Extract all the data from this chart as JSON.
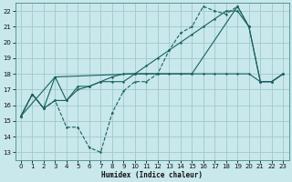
{
  "background_color": "#c8e8ec",
  "grid_color": "#a0c8cc",
  "line_color": "#1a6060",
  "xlabel": "Humidex (Indice chaleur)",
  "xlim": [
    -0.5,
    23.5
  ],
  "ylim": [
    12.5,
    22.5
  ],
  "xticks": [
    0,
    1,
    2,
    3,
    4,
    5,
    6,
    7,
    8,
    9,
    10,
    11,
    12,
    13,
    14,
    15,
    16,
    17,
    18,
    19,
    20,
    21,
    22,
    23
  ],
  "yticks": [
    13,
    14,
    15,
    16,
    17,
    18,
    19,
    20,
    21,
    22
  ],
  "lines": [
    {
      "x": [
        0,
        1,
        2,
        3,
        4,
        5,
        6,
        7,
        8,
        9,
        10,
        11,
        12,
        13,
        14,
        15,
        16,
        17,
        18,
        19,
        20,
        21,
        22,
        23
      ],
      "y": [
        15.3,
        16.7,
        15.8,
        17.8,
        16.3,
        17.0,
        17.2,
        17.5,
        17.5,
        17.5,
        18.0,
        18.0,
        18.0,
        18.0,
        18.0,
        18.0,
        18.0,
        18.0,
        18.0,
        18.0,
        18.0,
        17.5,
        17.5,
        18.0
      ],
      "dashed": false
    },
    {
      "x": [
        0,
        1,
        2,
        3,
        4,
        5,
        6,
        7,
        8,
        9,
        10,
        11,
        12,
        13,
        14,
        15,
        16,
        17,
        18,
        19,
        20
      ],
      "y": [
        15.3,
        16.7,
        15.8,
        16.3,
        14.6,
        14.6,
        13.3,
        13.0,
        15.5,
        16.9,
        17.5,
        17.5,
        18.0,
        19.5,
        20.6,
        21.0,
        22.3,
        22.0,
        21.8,
        22.3,
        21.0
      ],
      "dashed": true
    },
    {
      "x": [
        0,
        1,
        2,
        3,
        4,
        5,
        6,
        7,
        8,
        9,
        10,
        11,
        12,
        13,
        14,
        15,
        16,
        17,
        18,
        19,
        20,
        21,
        22,
        23
      ],
      "y": [
        15.3,
        16.7,
        15.8,
        16.3,
        16.3,
        17.2,
        17.2,
        17.5,
        17.8,
        18.0,
        18.0,
        18.5,
        19.0,
        19.5,
        20.0,
        20.5,
        21.0,
        21.5,
        22.0,
        22.0,
        21.0,
        17.5,
        17.5,
        18.0
      ],
      "dashed": false
    },
    {
      "x": [
        0,
        3,
        10,
        15,
        19,
        20,
        21,
        22,
        23
      ],
      "y": [
        15.3,
        17.8,
        18.0,
        18.0,
        22.3,
        21.0,
        17.5,
        17.5,
        18.0
      ],
      "dashed": false
    }
  ]
}
